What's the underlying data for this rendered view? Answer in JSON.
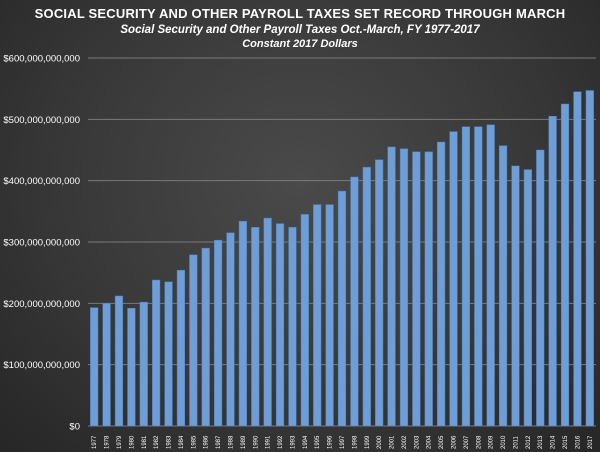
{
  "chart_data": {
    "type": "bar",
    "title": "SOCIAL SECURITY AND OTHER PAYROLL TAXES SET RECORD THROUGH MARCH",
    "subtitle": "Social Security and Other Payroll Taxes Oct.-March, FY 1977-2017",
    "subtitle2": "Constant 2017 Dollars",
    "xlabel": "",
    "ylabel": "",
    "ylim": [
      0,
      600000000000
    ],
    "yticks": [
      0,
      100000000000,
      200000000000,
      300000000000,
      400000000000,
      500000000000,
      600000000000
    ],
    "ytick_labels": [
      "$0",
      "$100,000,000,000",
      "$200,000,000,000",
      "$300,000,000,000",
      "$400,000,000,000",
      "$500,000,000,000",
      "$600,000,000,000"
    ],
    "grid": true,
    "bar_color": "#6f9ed6",
    "categories": [
      "1977",
      "1978",
      "1979",
      "1980",
      "1981",
      "1982",
      "1983",
      "1984",
      "1985",
      "1986",
      "1987",
      "1988",
      "1989",
      "1990",
      "1991",
      "1992",
      "1993",
      "1994",
      "1995",
      "1996",
      "1997",
      "1998",
      "1999",
      "2000",
      "2001",
      "2002",
      "2003",
      "2004",
      "2005",
      "2006",
      "2007",
      "2008",
      "2009",
      "2010",
      "2011",
      "2012",
      "2013",
      "2014",
      "2015",
      "2016",
      "2017"
    ],
    "values": [
      193000000000,
      200000000000,
      212000000000,
      192000000000,
      202000000000,
      238000000000,
      235000000000,
      254000000000,
      279000000000,
      290000000000,
      303000000000,
      315000000000,
      334000000000,
      324000000000,
      339000000000,
      330000000000,
      324000000000,
      345000000000,
      361000000000,
      361000000000,
      383000000000,
      406000000000,
      422000000000,
      434000000000,
      455000000000,
      452000000000,
      447000000000,
      447000000000,
      463000000000,
      480000000000,
      488000000000,
      488000000000,
      491000000000,
      457000000000,
      424000000000,
      418000000000,
      450000000000,
      505000000000,
      525000000000,
      545000000000,
      547000000000
    ]
  }
}
